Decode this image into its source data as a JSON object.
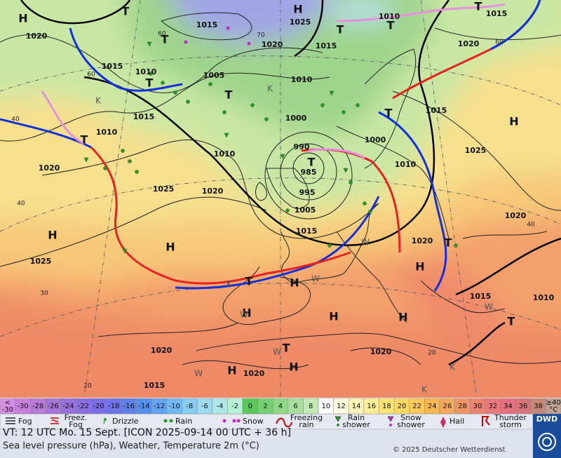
{
  "pressure_labels": [
    1020,
    1015,
    1025,
    1010,
    1015,
    1020,
    1015,
    1020,
    1015,
    1010,
    1005,
    1010,
    1015,
    1015,
    1010,
    1000,
    1000,
    1025,
    990,
    1010,
    1010,
    1020,
    985,
    1025,
    1020,
    995,
    1005,
    1020,
    1015,
    1020,
    1025,
    1015,
    1010,
    1020,
    1020,
    1020,
    1015
  ],
  "system_labels": [
    "H",
    "T",
    "H",
    "T",
    "T",
    "T",
    "T",
    "T",
    "T",
    "K",
    "K",
    "T",
    "H",
    "T",
    "T",
    "H",
    "H",
    "T",
    "H",
    "H",
    "T",
    "W",
    "H",
    "H",
    "H",
    "T",
    "W",
    "W",
    "H",
    "T",
    "W",
    "W",
    "H",
    "K",
    "K",
    "W",
    "K"
  ],
  "latitude_labels": [
    60,
    70,
    60,
    60,
    40,
    40,
    30,
    40,
    20,
    20
  ],
  "colorbar": {
    "under": [
      "<",
      "-30"
    ],
    "values": [
      -30,
      -28,
      -26,
      -24,
      -22,
      -20,
      -18,
      -16,
      -14,
      -12,
      -10,
      -8,
      -6,
      -4,
      -2,
      0,
      2,
      4,
      6,
      8,
      10,
      12,
      14,
      16,
      18,
      20,
      22,
      24,
      26,
      28,
      30,
      32,
      34,
      36,
      38
    ],
    "over": [
      "≥40",
      "°C"
    ],
    "under_color": "#d690e2",
    "colors": [
      "#c580da",
      "#b67ad8",
      "#a674d8",
      "#9870dc",
      "#8a6ee0",
      "#7b6de4",
      "#6c74e8",
      "#5f80ec",
      "#5490ee",
      "#62a4f0",
      "#74b8f2",
      "#88ccf2",
      "#9cdcf0",
      "#ade8e8",
      "#b8f0d8",
      "#5cc85c",
      "#74d070",
      "#8cd884",
      "#a6e09c",
      "#c0eab4",
      "#ffffff",
      "#fffadc",
      "#fff4b8",
      "#ffee94",
      "#ffe470",
      "#ffd860",
      "#fcc858",
      "#f8b850",
      "#f4a858",
      "#f09464",
      "#ec8470",
      "#e8787c",
      "#e47080",
      "#d87478",
      "#c88878"
    ],
    "over_color": "#c0a090"
  },
  "legend": [
    "Fog",
    "Freez. Fog",
    "Drizzle",
    "Rain",
    "Snow",
    "Freezing rain",
    "Rain shower",
    "Snow shower",
    "Hail",
    "Thunder storm"
  ],
  "footer": {
    "valid_time": "VT: 12 UTC Mo.  15 Sept. [ICON 2025-09-14  00 UTC + 36 h]",
    "description": "Sea level pressure (hPa), Weather, Temperature 2m (°C)",
    "copyright": "© 2025 Deutscher Wetterdienst",
    "logo": "DWD"
  }
}
